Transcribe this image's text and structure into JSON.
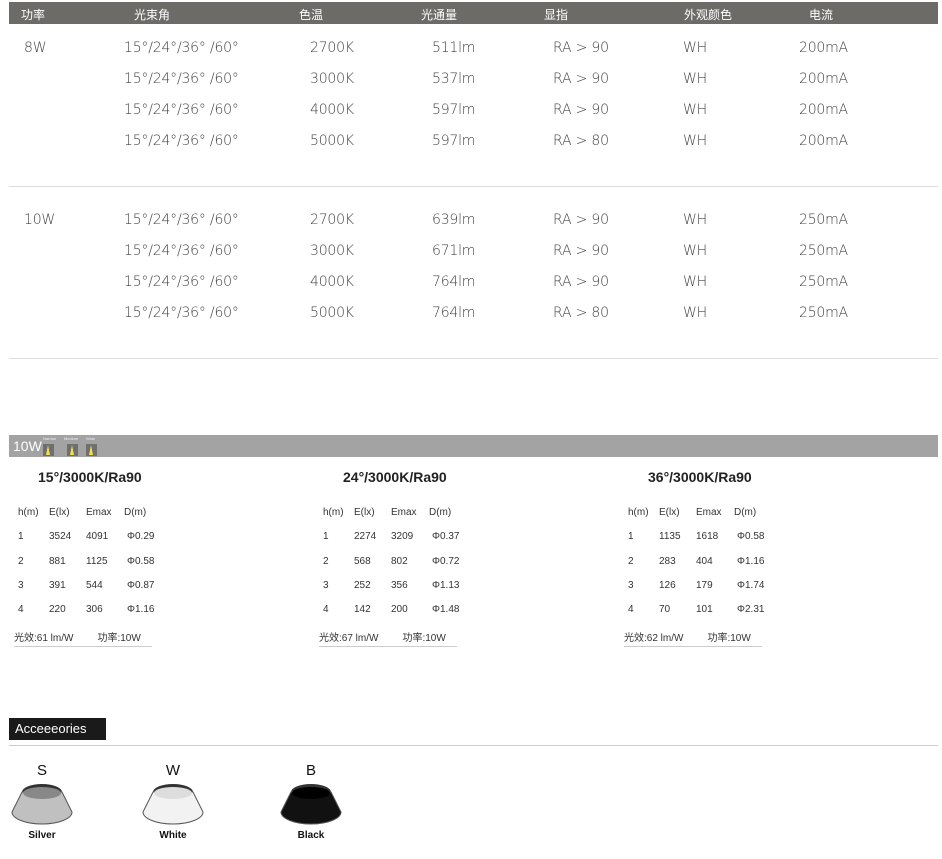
{
  "header": [
    "功率",
    "光束角",
    "色温",
    "光通量",
    "显指",
    "外观颜色",
    "电流"
  ],
  "groups": [
    {
      "power": "8W",
      "rows": [
        [
          "15°/24°/36° /60°",
          "2700K",
          "511lm",
          "RA > 90",
          "WH",
          "200mA"
        ],
        [
          "15°/24°/36° /60°",
          "3000K",
          "537lm",
          "RA > 90",
          "WH",
          "200mA"
        ],
        [
          "15°/24°/36° /60°",
          "4000K",
          "597lm",
          "RA > 90",
          "WH",
          "200mA"
        ],
        [
          "15°/24°/36° /60°",
          "5000K",
          "597lm",
          "RA > 80",
          "WH",
          "200mA"
        ]
      ]
    },
    {
      "power": "10W",
      "rows": [
        [
          "15°/24°/36° /60°",
          "2700K",
          "639lm",
          "RA > 90",
          "WH",
          "250mA"
        ],
        [
          "15°/24°/36° /60°",
          "3000K",
          "671lm",
          "RA > 90",
          "WH",
          "250mA"
        ],
        [
          "15°/24°/36° /60°",
          "4000K",
          "764lm",
          "RA > 90",
          "WH",
          "250mA"
        ],
        [
          "15°/24°/36° /60°",
          "5000K",
          "764lm",
          "RA > 80",
          "WH",
          "250mA"
        ]
      ]
    }
  ],
  "photometric": {
    "power": "10W",
    "beam_icons": [
      "Narrow",
      "Medium",
      "Wide"
    ],
    "beam_icon_color": "#f5e04a",
    "columns": [
      "h(m)",
      "E(lx)",
      "Emax",
      "D(m)"
    ],
    "tables": [
      {
        "title": "15°/3000K/Ra90",
        "rows": [
          [
            "1",
            "3524",
            "4091",
            "Φ0.29"
          ],
          [
            "2",
            "881",
            "1125",
            "Φ0.58"
          ],
          [
            "3",
            "391",
            "544",
            "Φ0.87"
          ],
          [
            "4",
            "220",
            "306",
            "Φ1.16"
          ]
        ],
        "efficacy": "光效:61 lm/W",
        "power": "功率:10W"
      },
      {
        "title": "24°/3000K/Ra90",
        "rows": [
          [
            "1",
            "2274",
            "3209",
            "Φ0.37"
          ],
          [
            "2",
            "568",
            "802",
            "Φ0.72"
          ],
          [
            "3",
            "252",
            "356",
            "Φ1.13"
          ],
          [
            "4",
            "142",
            "200",
            "Φ1.48"
          ]
        ],
        "efficacy": "光效:67 lm/W",
        "power": "功率:10W"
      },
      {
        "title": "36°/3000K/Ra90",
        "rows": [
          [
            "1",
            "1135",
            "1618",
            "Φ0.58"
          ],
          [
            "2",
            "283",
            "404",
            "Φ1.16"
          ],
          [
            "3",
            "126",
            "179",
            "Φ1.74"
          ],
          [
            "4",
            "70",
            "101",
            "Φ2.31"
          ]
        ],
        "efficacy": "光效:62 lm/W",
        "power": "功率:10W"
      }
    ]
  },
  "accessories": {
    "title": "Acceeeories",
    "items": [
      {
        "letter": "S",
        "label": "Silver",
        "color": "#c0c0c0"
      },
      {
        "letter": "W",
        "label": "White",
        "color": "#f2f2f2"
      },
      {
        "letter": "B",
        "label": "Black",
        "color": "#111111"
      }
    ]
  }
}
